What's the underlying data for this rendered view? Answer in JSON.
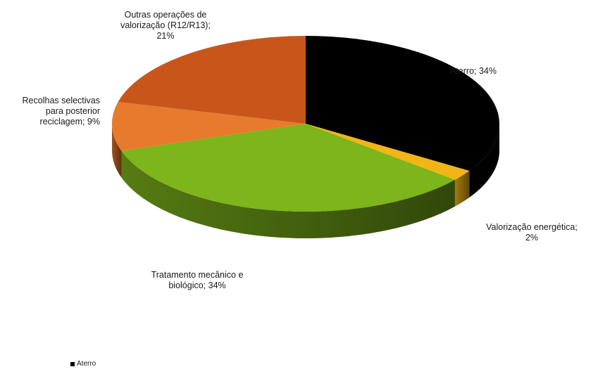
{
  "chart_data": {
    "type": "pie",
    "style": "3d",
    "title": "",
    "slices": [
      {
        "label": "Aterro",
        "value": 34,
        "display": "Aterro; 34%",
        "color": "#000000"
      },
      {
        "label": "Valorização energética",
        "value": 2,
        "display": "Valorização energética; 2%",
        "color": "#F2B515"
      },
      {
        "label": "Tratamento mecânico e biológico",
        "value": 34,
        "display": "Tratamento mecânico e biológico; 34%",
        "color": "#7DB51A"
      },
      {
        "label": "Recolhas selectivas para posterior reciclagem",
        "value": 9,
        "display": "Recolhas selectivas para posterior reciclagem; 9%",
        "color": "#E87A2E"
      },
      {
        "label": "Outras operações de valorização (R12/R13)",
        "value": 21,
        "display": "Outras operações de valorização (R12/R13); 21%",
        "color": "#C8561B"
      }
    ],
    "legend": {
      "position": "bottom-left",
      "entries": [
        "Aterro"
      ]
    }
  },
  "labels": {
    "aterro": "Aterro; 34%",
    "valorizacao_line1": "Valorização energética;",
    "valorizacao_line2": "2%",
    "tratamento_line1": "Tratamento mecânico e",
    "tratamento_line2": "biológico; 34%",
    "recolhas_line1": "Recolhas selectivas",
    "recolhas_line2": "para posterior",
    "recolhas_line3": "reciclagem; 9%",
    "outras_line1": "Outras operações de",
    "outras_line2": "valorização (R12/R13);",
    "outras_line3": "21%"
  },
  "legend": {
    "entry": "Aterro",
    "color": "#000000"
  }
}
